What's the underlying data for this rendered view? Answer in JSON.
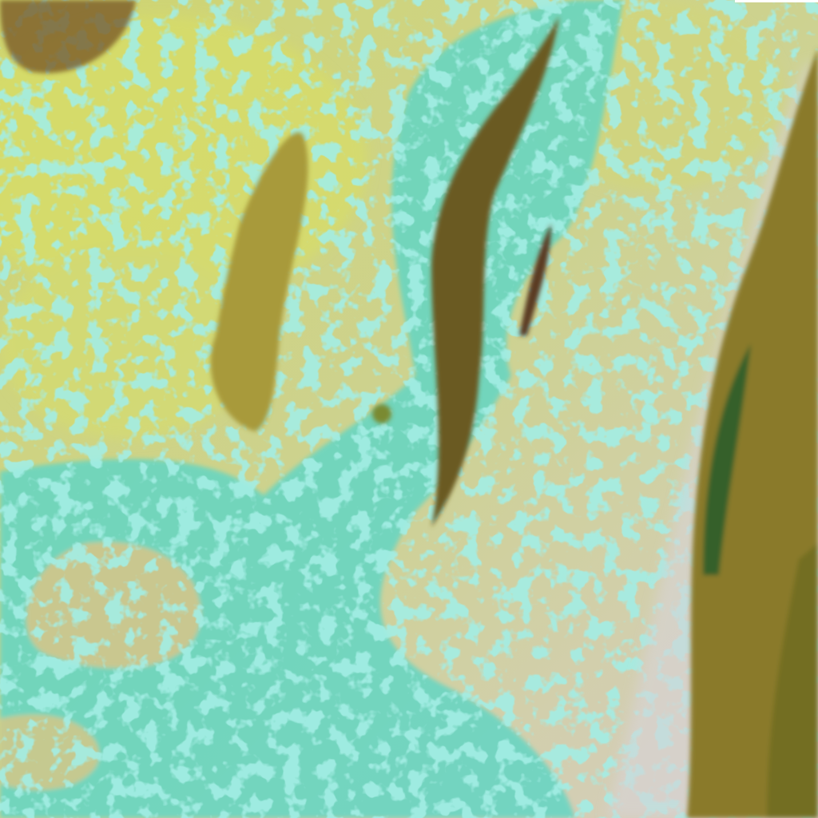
{
  "image": {
    "kind": "false-color satellite imagery",
    "colors": {
      "background": "#c9d27a",
      "bright_yellow": "#d8e06a",
      "low_cloud_cyan": "#5fd8c8",
      "pale_lavender": "#d8d0c8",
      "dark_band": "#6a5a20",
      "olive": "#a89a3a",
      "dark_green": "#1e5a2a"
    }
  }
}
